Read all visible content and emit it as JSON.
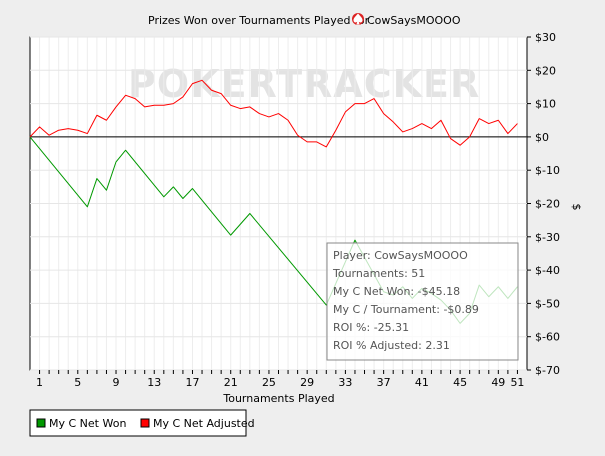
{
  "chart_data": {
    "type": "line",
    "title": "Prizes Won over Tournaments Played for",
    "player": "CowSaysMOOOO",
    "xlabel": "Tournaments Played",
    "ylabel": "$",
    "watermark": "POKERTRACKER",
    "xlim": [
      0,
      52
    ],
    "ylim": [
      -70,
      30
    ],
    "x_ticks": [
      1,
      5,
      9,
      13,
      17,
      21,
      25,
      29,
      33,
      37,
      41,
      45,
      49,
      51
    ],
    "x_tick_labels": [
      "1",
      "5",
      "9",
      "13",
      "17",
      "21",
      "25",
      "29",
      "33",
      "37",
      "41",
      "45",
      "49",
      "51"
    ],
    "y_ticks": [
      30,
      20,
      10,
      0,
      -10,
      -20,
      -30,
      -40,
      -50,
      -60,
      -70
    ],
    "y_tick_labels": [
      "$30",
      "$20",
      "$10",
      "$0",
      "$-10",
      "$-20",
      "$-30",
      "$-40",
      "$-50",
      "$-60",
      "$-70"
    ],
    "grid": true,
    "legend_position": "bottom-left",
    "series": [
      {
        "name": "My C Net Won",
        "color": "#009900",
        "x": [
          0,
          6,
          7,
          8,
          9,
          10,
          14,
          15,
          16,
          17,
          21,
          23,
          31,
          34,
          37,
          38,
          39,
          40,
          41,
          42,
          43,
          44,
          45,
          46,
          47,
          48,
          49,
          50,
          51
        ],
        "values": [
          0,
          -21,
          -12.5,
          -16,
          -7.5,
          -4,
          -18,
          -15,
          -18.5,
          -15.5,
          -29.5,
          -23,
          -50.5,
          -31,
          -46.5,
          -47.5,
          -45,
          -48.5,
          -45.5,
          -47,
          -49,
          -52,
          -56,
          -53,
          -44.5,
          -48,
          -45,
          -48.5,
          -45
        ]
      },
      {
        "name": "My C Net Adjusted",
        "color": "#ff0000",
        "x": [
          0,
          1,
          2,
          3,
          4,
          5,
          6,
          7,
          8,
          9,
          10,
          11,
          12,
          13,
          14,
          15,
          16,
          17,
          18,
          19,
          20,
          21,
          22,
          23,
          24,
          25,
          26,
          27,
          28,
          29,
          30,
          31,
          32,
          33,
          34,
          35,
          36,
          37,
          38,
          39,
          40,
          41,
          42,
          43,
          44,
          45,
          46,
          47,
          48,
          49,
          50,
          51
        ],
        "values": [
          0,
          3,
          0.5,
          2,
          2.5,
          2,
          1,
          6.5,
          5,
          9,
          12.5,
          11.5,
          9,
          9.5,
          9.5,
          10,
          12,
          16,
          17,
          14,
          13,
          9.5,
          8.5,
          9,
          7,
          6,
          7,
          5,
          0.5,
          -1.5,
          -1.5,
          -3,
          2,
          7.5,
          10,
          10,
          11.5,
          7,
          4.5,
          1.5,
          2.5,
          4,
          2.5,
          5,
          -0.5,
          -2.5,
          0,
          5.5,
          4,
          5,
          1,
          4
        ]
      }
    ],
    "info_box": [
      "Player: CowSaysMOOOO",
      "Tournaments: 51",
      "My C Net Won: -$45.18",
      "My C / Tournament: -$0.89",
      "ROI %: -25.31",
      "ROI % Adjusted: 2.31"
    ]
  }
}
